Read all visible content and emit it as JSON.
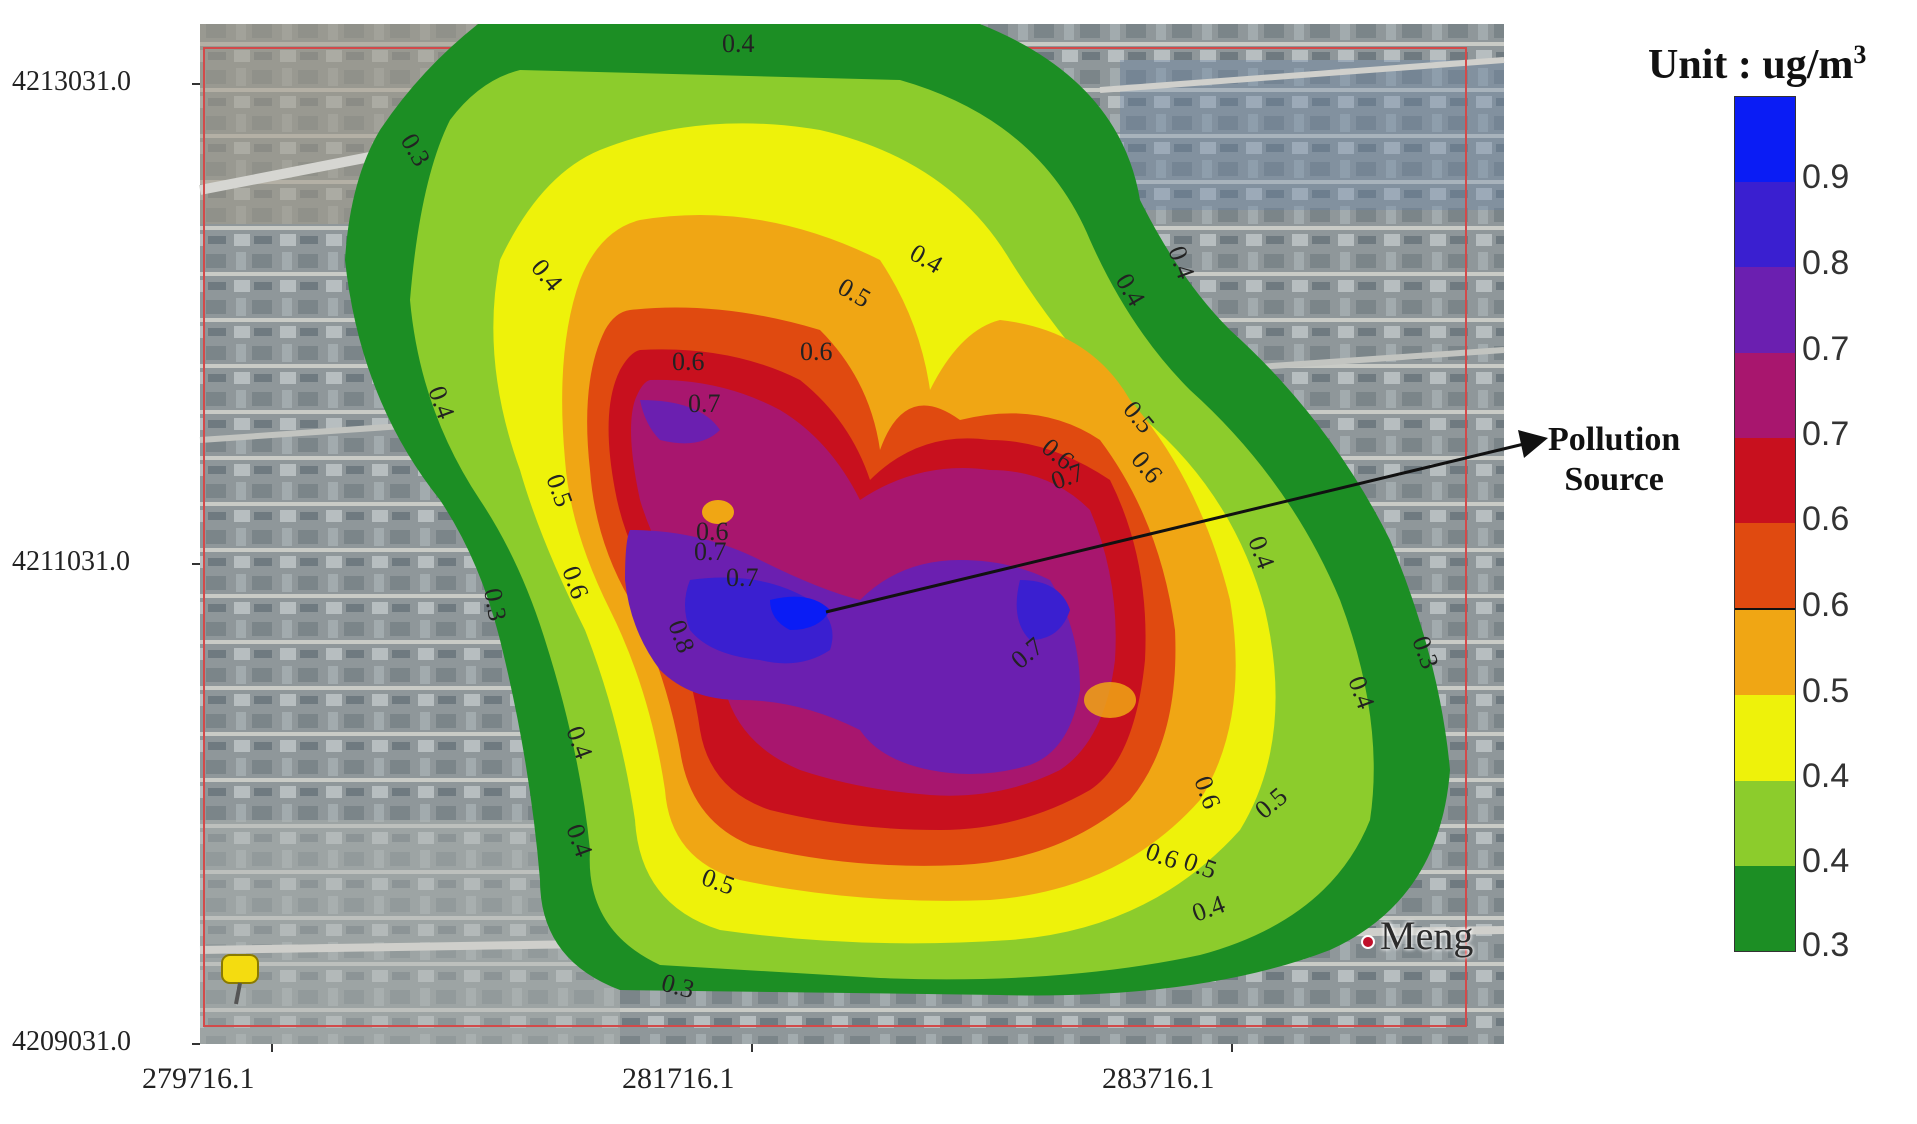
{
  "legend": {
    "title": "Unit : ug/m",
    "title_sup": "3",
    "ticks": [
      "0.9",
      "0.8",
      "0.7",
      "0.7",
      "0.6",
      "0.6",
      "0.5",
      "0.4",
      "0.4",
      "0.3"
    ],
    "colors": [
      "#0a1cf5",
      "#3a1fd0",
      "#6b1fb0",
      "#a8166e",
      "#c8101e",
      "#e04a10",
      "#f0a614",
      "#eef20a",
      "#8ccc2c",
      "#1c8e24"
    ]
  },
  "axes": {
    "y_ticks": [
      "4213031.0",
      "4211031.0",
      "4209031.0"
    ],
    "x_ticks": [
      "279716.1",
      "281716.1",
      "283716.1"
    ]
  },
  "annotation": {
    "line1": "Pollution",
    "line2": "Source"
  },
  "town_label": "Meng",
  "contour_labels": [
    "0.4",
    "0.3",
    "0.4",
    "0.4",
    "0.5",
    "0.4",
    "0.4",
    "0.4",
    "0.6",
    "0.6",
    "0.7",
    "0.5",
    "0.6",
    "0.6",
    "0.7",
    "0.5",
    "0.6",
    "0.7",
    "0.7",
    "0.6",
    "0.4",
    "0.3",
    "0.3",
    "0.8",
    "0.7",
    "0.4",
    "0.4",
    "0.6",
    "0.5",
    "0.5",
    "0.6",
    "0.5",
    "0.4",
    "0.4",
    "0.3"
  ]
}
